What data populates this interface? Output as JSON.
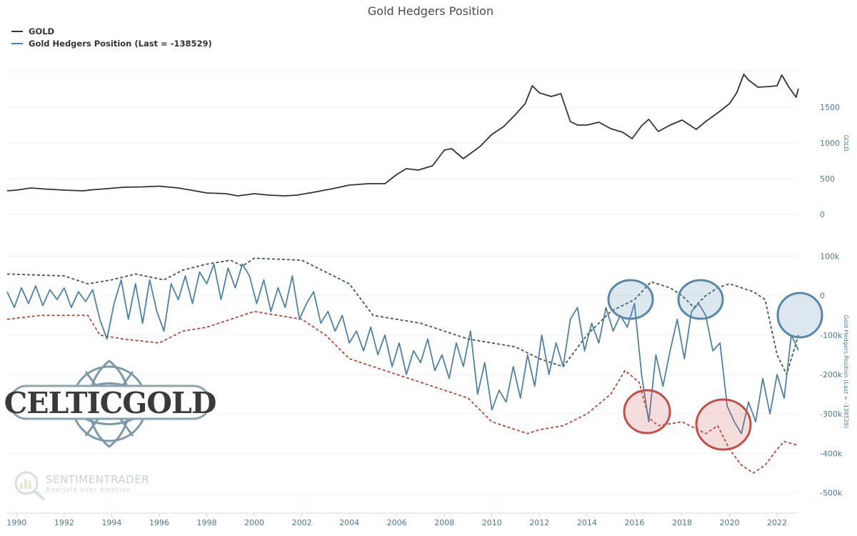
{
  "chart_data": {
    "type": "line",
    "title": "Gold Hedgers Position",
    "legend": {
      "placement": "top-left",
      "entries": [
        {
          "label": "GOLD",
          "color": "#333333"
        },
        {
          "label": "Gold Hedgers Position (Last = -138529)",
          "color": "#4f81a3"
        }
      ]
    },
    "x_axis": {
      "range": [
        1989.6,
        2022.9
      ],
      "ticks": [
        1990,
        1992,
        1994,
        1996,
        1998,
        2000,
        2002,
        2004,
        2006,
        2008,
        2010,
        2012,
        2014,
        2016,
        2018,
        2020,
        2022
      ]
    },
    "upper_panel": {
      "ylabel": "GOLD",
      "ylim": [
        0,
        2000
      ],
      "ticks": [
        0,
        500,
        1000,
        1500
      ],
      "grid": true,
      "series": [
        {
          "name": "GOLD",
          "color": "#333333",
          "x": [
            1989.6,
            1990.0,
            1990.6,
            1991.2,
            1992.0,
            1992.8,
            1993.2,
            1993.8,
            1994.5,
            1995.3,
            1996.0,
            1996.8,
            1997.5,
            1998.0,
            1998.8,
            1999.3,
            1999.8,
            2000.0,
            2000.6,
            2001.3,
            2001.8,
            2002.5,
            2003.3,
            2004.0,
            2004.8,
            2005.5,
            2006.0,
            2006.4,
            2006.9,
            2007.5,
            2008.0,
            2008.3,
            2008.8,
            2009.5,
            2010.0,
            2010.5,
            2011.0,
            2011.4,
            2011.7,
            2012.0,
            2012.5,
            2012.9,
            2013.3,
            2013.6,
            2014.0,
            2014.5,
            2015.0,
            2015.5,
            2015.9,
            2016.3,
            2016.6,
            2017.0,
            2017.5,
            2018.0,
            2018.6,
            2019.0,
            2019.5,
            2020.0,
            2020.3,
            2020.6,
            2020.8,
            2021.2,
            2021.7,
            2022.0,
            2022.2,
            2022.5,
            2022.8,
            2022.9
          ],
          "y": [
            330,
            340,
            370,
            355,
            340,
            330,
            345,
            360,
            380,
            385,
            395,
            370,
            330,
            300,
            290,
            260,
            280,
            290,
            270,
            260,
            270,
            310,
            360,
            410,
            430,
            430,
            560,
            640,
            620,
            680,
            900,
            920,
            780,
            950,
            1120,
            1230,
            1400,
            1550,
            1800,
            1700,
            1650,
            1690,
            1300,
            1250,
            1250,
            1290,
            1200,
            1150,
            1060,
            1240,
            1330,
            1160,
            1250,
            1320,
            1190,
            1300,
            1420,
            1550,
            1700,
            1960,
            1880,
            1780,
            1790,
            1800,
            1950,
            1780,
            1640,
            1760
          ]
        }
      ]
    },
    "lower_panel": {
      "ylabel": "Gold Hedgers Position (Last = -138529)",
      "ylim": [
        -550000,
        130000
      ],
      "ticks": [
        100000,
        0,
        -100000,
        -200000,
        -300000,
        -400000,
        -500000
      ],
      "tick_labels": [
        "100k",
        "0",
        "-100k",
        "-200k",
        "-300k",
        "-400k",
        "-500k"
      ],
      "grid": true,
      "series": [
        {
          "name": "Gold Hedgers Position (Last = -138529)",
          "color": "#4f81a3",
          "x": [
            1989.6,
            1989.9,
            1990.2,
            1990.5,
            1990.8,
            1991.1,
            1991.4,
            1991.7,
            1992.0,
            1992.3,
            1992.6,
            1992.9,
            1993.2,
            1993.5,
            1993.8,
            1994.1,
            1994.4,
            1994.7,
            1995.0,
            1995.3,
            1995.6,
            1995.9,
            1996.2,
            1996.5,
            1996.8,
            1997.1,
            1997.4,
            1997.7,
            1998.0,
            1998.3,
            1998.6,
            1998.9,
            1999.2,
            1999.5,
            1999.8,
            2000.1,
            2000.4,
            2000.7,
            2001.0,
            2001.3,
            2001.6,
            2001.9,
            2002.2,
            2002.5,
            2002.8,
            2003.1,
            2003.4,
            2003.7,
            2004.0,
            2004.3,
            2004.6,
            2004.9,
            2005.2,
            2005.5,
            2005.8,
            2006.1,
            2006.4,
            2006.7,
            2007.0,
            2007.3,
            2007.6,
            2007.9,
            2008.2,
            2008.5,
            2008.8,
            2009.1,
            2009.4,
            2009.7,
            2010.0,
            2010.3,
            2010.6,
            2010.9,
            2011.2,
            2011.5,
            2011.8,
            2012.1,
            2012.4,
            2012.7,
            2013.0,
            2013.3,
            2013.6,
            2013.9,
            2014.2,
            2014.5,
            2014.8,
            2015.1,
            2015.4,
            2015.7,
            2016.0,
            2016.3,
            2016.6,
            2016.9,
            2017.2,
            2017.5,
            2017.8,
            2018.1,
            2018.4,
            2018.7,
            2019.0,
            2019.3,
            2019.6,
            2019.9,
            2020.2,
            2020.5,
            2020.8,
            2021.1,
            2021.4,
            2021.7,
            2022.0,
            2022.3,
            2022.6,
            2022.9
          ],
          "y": [
            10000,
            -30000,
            20000,
            -20000,
            25000,
            -25000,
            15000,
            -10000,
            20000,
            -30000,
            10000,
            -15000,
            15000,
            -60000,
            -110000,
            -20000,
            40000,
            -60000,
            30000,
            -70000,
            40000,
            -40000,
            -90000,
            30000,
            -10000,
            50000,
            -20000,
            60000,
            30000,
            80000,
            -10000,
            70000,
            20000,
            80000,
            50000,
            -20000,
            40000,
            -40000,
            20000,
            -30000,
            50000,
            -60000,
            -20000,
            10000,
            -70000,
            -40000,
            -90000,
            -50000,
            -120000,
            -90000,
            -140000,
            -80000,
            -150000,
            -100000,
            -180000,
            -120000,
            -200000,
            -140000,
            -170000,
            -110000,
            -190000,
            -150000,
            -210000,
            -120000,
            -180000,
            -90000,
            -250000,
            -170000,
            -290000,
            -240000,
            -270000,
            -180000,
            -260000,
            -150000,
            -230000,
            -100000,
            -200000,
            -120000,
            -180000,
            -60000,
            -30000,
            -140000,
            -70000,
            -120000,
            -30000,
            -90000,
            -50000,
            -80000,
            -20000,
            -200000,
            -320000,
            -150000,
            -230000,
            -140000,
            -60000,
            -160000,
            -40000,
            -20000,
            -50000,
            -140000,
            -120000,
            -280000,
            -320000,
            -350000,
            -270000,
            -320000,
            -210000,
            -300000,
            -200000,
            -260000,
            -100000,
            -138529
          ]
        },
        {
          "name": "upper band",
          "color": "#3d5a47",
          "dashed": true,
          "x": [
            1989.6,
            1992.0,
            1993.0,
            1994.0,
            1995.0,
            1996.2,
            1997.0,
            1998.0,
            1999.0,
            1999.5,
            2000.0,
            2002.0,
            2003.0,
            2004.0,
            2005.0,
            2006.0,
            2007.0,
            2008.0,
            2009.0,
            2010.0,
            2011.0,
            2012.0,
            2013.0,
            2014.0,
            2015.0,
            2016.0,
            2016.7,
            2017.5,
            2018.0,
            2018.5,
            2019.0,
            2019.5,
            2020.0,
            2021.0,
            2021.5,
            2022.0,
            2022.4,
            2022.9
          ],
          "y": [
            55000,
            50000,
            30000,
            40000,
            55000,
            40000,
            65000,
            80000,
            90000,
            75000,
            95000,
            90000,
            60000,
            30000,
            -50000,
            -60000,
            -70000,
            -90000,
            -110000,
            -120000,
            -130000,
            -160000,
            -180000,
            -100000,
            -40000,
            -10000,
            35000,
            20000,
            0,
            -30000,
            0,
            20000,
            30000,
            10000,
            -10000,
            -150000,
            -200000,
            -100000
          ]
        },
        {
          "name": "lower band",
          "color": "#b5463a",
          "dashed": true,
          "x": [
            1989.6,
            1991.0,
            1993.0,
            1993.5,
            1994.5,
            1996.0,
            1997.0,
            1998.0,
            1999.0,
            2000.0,
            2001.0,
            2002.0,
            2003.0,
            2004.0,
            2005.0,
            2006.0,
            2007.0,
            2008.0,
            2009.0,
            2010.0,
            2011.0,
            2011.5,
            2012.0,
            2013.0,
            2014.0,
            2015.0,
            2015.6,
            2016.2,
            2016.6,
            2017.0,
            2018.0,
            2019.0,
            2019.5,
            2020.0,
            2020.5,
            2021.0,
            2021.5,
            2022.0,
            2022.3,
            2022.9
          ],
          "y": [
            -60000,
            -50000,
            -50000,
            -100000,
            -110000,
            -120000,
            -90000,
            -80000,
            -60000,
            -40000,
            -50000,
            -60000,
            -100000,
            -160000,
            -180000,
            -200000,
            -220000,
            -240000,
            -260000,
            -320000,
            -340000,
            -350000,
            -340000,
            -330000,
            -300000,
            -250000,
            -190000,
            -220000,
            -310000,
            -330000,
            -320000,
            -350000,
            -330000,
            -390000,
            -430000,
            -450000,
            -430000,
            -390000,
            -370000,
            -380000
          ]
        }
      ]
    },
    "logo": {
      "text": "CELTICGOLD"
    },
    "watermark": {
      "main": "SENTIMENTRADER",
      "sub": "Analysis over emotion"
    }
  }
}
